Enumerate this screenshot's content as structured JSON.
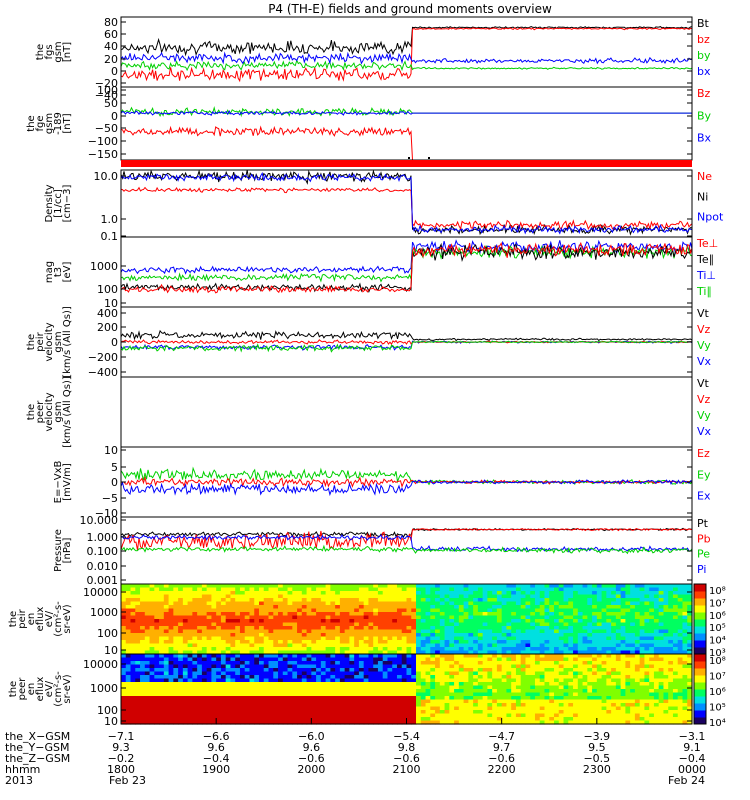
{
  "title": "P4 (TH-E) fields and ground moments overview",
  "colors": {
    "black": "#000000",
    "red": "#ff0000",
    "green": "#00d000",
    "blue": "#0000ff",
    "colormap": [
      "#1a0060",
      "#0000ff",
      "#0090ff",
      "#00e0e0",
      "#00ff60",
      "#80ff00",
      "#ffff00",
      "#ffb000",
      "#ff4000",
      "#d00000"
    ]
  },
  "chart_data": [
    {
      "type": "line",
      "id": "fgs",
      "ylabel": [
        "the",
        "fgs",
        "gsm",
        "[nT]"
      ],
      "yticks": [
        "80",
        "60",
        "40",
        "20",
        "0",
        "−20",
        "−40"
      ],
      "ylim": [
        -40,
        80
      ],
      "legend": [
        {
          "name": "Bt",
          "color": "#000000"
        },
        {
          "name": "bz",
          "color": "#ff0000"
        },
        {
          "name": "by",
          "color": "#00d000"
        },
        {
          "name": "bx",
          "color": "#0000ff"
        }
      ],
      "series": [
        {
          "name": "Bt",
          "color": "#000000",
          "level_before": 28,
          "noise_before": 8,
          "level_after": 62,
          "noise_after": 1
        },
        {
          "name": "bz",
          "color": "#ff0000",
          "level_before": -18,
          "noise_before": 8,
          "level_after": 60,
          "noise_after": 1
        },
        {
          "name": "by",
          "color": "#00d000",
          "level_before": -3,
          "noise_before": 5,
          "level_after": -8,
          "noise_after": 1
        },
        {
          "name": "bx",
          "color": "#0000ff",
          "level_before": 10,
          "noise_before": 6,
          "level_after": 5,
          "noise_after": 3
        }
      ]
    },
    {
      "type": "line",
      "id": "fge",
      "ylabel": [
        "the",
        "fge",
        "gsm",
        "-189",
        "[nT]"
      ],
      "yticks": [
        "100",
        "50",
        "0",
        "−50",
        "−100",
        "−150"
      ],
      "ylim": [
        -180,
        100
      ],
      "legend": [
        {
          "name": "Bz",
          "color": "#ff0000"
        },
        {
          "name": "By",
          "color": "#00d000"
        },
        {
          "name": "Bx",
          "color": "#0000ff"
        }
      ],
      "series": [
        {
          "name": "Bz",
          "color": "#ff0000",
          "level_before": -70,
          "noise_before": 12,
          "level_after": -189,
          "noise_after": 0
        },
        {
          "name": "By",
          "color": "#00d000",
          "level_before": 5,
          "noise_before": 10,
          "level_after": 0,
          "noise_after": 0
        },
        {
          "name": "Bx",
          "color": "#0000ff",
          "level_before": 0,
          "noise_before": 5,
          "level_after": 0,
          "noise_after": 0
        }
      ]
    },
    {
      "type": "line",
      "id": "density",
      "log": true,
      "ylabel": [
        "Density",
        "[1/cc]",
        "[cm−3]"
      ],
      "yticks": [
        "10.0",
        "1.0",
        "0.1"
      ],
      "ylim": [
        0.1,
        50
      ],
      "legend": [
        {
          "name": "Ne",
          "color": "#ff0000"
        },
        {
          "name": "Ni",
          "color": "#000000"
        },
        {
          "name": "Npot",
          "color": "#0000ff"
        }
      ],
      "series": [
        {
          "name": "Ni",
          "color": "#000000",
          "level_before": 28,
          "noise_before": 0.08,
          "level_after": 0.2,
          "noise_after": 0.06
        },
        {
          "name": "Ne",
          "color": "#ff0000",
          "level_before": 8,
          "noise_before": 0.03,
          "level_after": 0.3,
          "noise_after": 0.06
        },
        {
          "name": "Npot",
          "color": "#0000ff",
          "level_before": 25,
          "noise_before": 0.05,
          "level_after": 0.2,
          "noise_after": 0.05
        }
      ]
    },
    {
      "type": "line",
      "id": "temp",
      "log": true,
      "ylabel": [
        "mag",
        "t3",
        "[eV]"
      ],
      "yticks": [
        "1000",
        "100",
        "10"
      ],
      "ylim": [
        10,
        6000
      ],
      "legend": [
        {
          "name": "Te⊥",
          "color": "#ff0000"
        },
        {
          "name": "Te∥",
          "color": "#000000"
        },
        {
          "name": "Ti⊥",
          "color": "#0000ff"
        },
        {
          "name": "Ti∥",
          "color": "#00d000"
        }
      ],
      "series": [
        {
          "name": "Ti⊥",
          "color": "#0000ff",
          "level_before": 300,
          "noise_before": 0.05,
          "level_after": 2500,
          "noise_after": 0.08
        },
        {
          "name": "Ti∥",
          "color": "#00d000",
          "level_before": 150,
          "noise_before": 0.05,
          "level_after": 1500,
          "noise_after": 0.08
        },
        {
          "name": "Te∥",
          "color": "#000000",
          "level_before": 60,
          "noise_before": 0.05,
          "level_after": 1500,
          "noise_after": 0.1
        },
        {
          "name": "Te⊥",
          "color": "#ff0000",
          "level_before": 50,
          "noise_before": 0.05,
          "level_after": 1800,
          "noise_after": 0.1
        }
      ]
    },
    {
      "type": "line",
      "id": "vel_i",
      "ylabel": [
        "the",
        "peir",
        "velocity",
        "gsm",
        "[km/s (All Qs)]"
      ],
      "yticks": [
        "400",
        "200",
        "0",
        "−200",
        "−400"
      ],
      "ylim": [
        -400,
        400
      ],
      "legend": [
        {
          "name": "Vt",
          "color": "#000000"
        },
        {
          "name": "Vz",
          "color": "#ff0000"
        },
        {
          "name": "Vy",
          "color": "#00d000"
        },
        {
          "name": "Vx",
          "color": "#0000ff"
        }
      ],
      "series": [
        {
          "name": "Vt",
          "color": "#000000",
          "level_before": 80,
          "noise_before": 30,
          "level_after": 30,
          "noise_after": 8
        },
        {
          "name": "Vx",
          "color": "#0000ff",
          "level_before": -60,
          "noise_before": 20,
          "level_after": 0,
          "noise_after": 8
        },
        {
          "name": "Vz",
          "color": "#ff0000",
          "level_before": 0,
          "noise_before": 15,
          "level_after": 0,
          "noise_after": 6
        },
        {
          "name": "Vy",
          "color": "#00d000",
          "level_before": -70,
          "noise_before": 25,
          "level_after": 0,
          "noise_after": 6
        }
      ]
    },
    {
      "type": "line",
      "id": "vel_e",
      "ylabel": [
        "the",
        "peer",
        "velocity",
        "gsm",
        "[km/s (All Qs)]"
      ],
      "yticks": [],
      "ylim": [
        -400,
        400
      ],
      "legend": [
        {
          "name": "Vt",
          "color": "#000000"
        },
        {
          "name": "Vz",
          "color": "#ff0000"
        },
        {
          "name": "Vy",
          "color": "#00d000"
        },
        {
          "name": "Vx",
          "color": "#0000ff"
        }
      ],
      "series": []
    },
    {
      "type": "line",
      "id": "efield",
      "ylabel": [
        "E=−VxB",
        "[mV/m]"
      ],
      "yticks": [
        "10",
        "5",
        "0",
        "−5",
        "−10"
      ],
      "ylim": [
        -10,
        10
      ],
      "legend": [
        {
          "name": "Ez",
          "color": "#ff0000"
        },
        {
          "name": "Ey",
          "color": "#00d000"
        },
        {
          "name": "Ex",
          "color": "#0000ff"
        }
      ],
      "series": [
        {
          "name": "Ey",
          "color": "#00d000",
          "level_before": 2,
          "noise_before": 1.2,
          "level_after": 0,
          "noise_after": 0.4
        },
        {
          "name": "Ez",
          "color": "#ff0000",
          "level_before": 0,
          "noise_before": 0.8,
          "level_after": 0,
          "noise_after": 0.3
        },
        {
          "name": "Ex",
          "color": "#0000ff",
          "level_before": -2,
          "noise_before": 1.2,
          "level_after": 0,
          "noise_after": 0.4
        }
      ]
    },
    {
      "type": "line",
      "id": "pressure",
      "log": true,
      "ylabel": [
        "Pressure",
        "[nPa]"
      ],
      "yticks": [
        "10.000",
        "1.000",
        "0.100",
        "0.010",
        "0.001"
      ],
      "ylim": [
        0.001,
        10
      ],
      "legend": [
        {
          "name": "Pt",
          "color": "#000000"
        },
        {
          "name": "Pb",
          "color": "#ff0000"
        },
        {
          "name": "Pe",
          "color": "#00d000"
        },
        {
          "name": "Pi",
          "color": "#0000ff"
        }
      ],
      "series": [
        {
          "name": "Pt",
          "color": "#000000",
          "level_before": 0.9,
          "noise_before": 0.05,
          "level_after": 1.8,
          "noise_after": 0.02
        },
        {
          "name": "Pb",
          "color": "#ff0000",
          "level_before": 0.35,
          "noise_before": 0.2,
          "level_after": 1.8,
          "noise_after": 0.02
        },
        {
          "name": "Pi",
          "color": "#0000ff",
          "level_before": 0.6,
          "noise_before": 0.05,
          "level_after": 0.12,
          "noise_after": 0.05
        },
        {
          "name": "Pe",
          "color": "#00d000",
          "level_before": 0.12,
          "noise_before": 0.05,
          "level_after": 0.1,
          "noise_after": 0.05
        }
      ]
    },
    {
      "type": "heatmap",
      "id": "eflux_i",
      "ylabel": [
        "the",
        "peir",
        "en",
        "eflux",
        "eV/",
        "(cm²-s-",
        "sr-eV)"
      ],
      "yticks": [
        "10000",
        "1000",
        "100",
        "10"
      ],
      "ylim": [
        10,
        20000
      ],
      "colorbar": [
        "10⁸",
        "10⁷",
        "10⁶",
        "10⁵",
        "10⁴",
        "10³"
      ]
    },
    {
      "type": "heatmap",
      "id": "eflux_e",
      "ylabel": [
        "the",
        "peer",
        "en",
        "eflux",
        "eV/",
        "(cm²-s-",
        "sr-eV)"
      ],
      "yticks": [
        "10000",
        "1000",
        "100",
        "10"
      ],
      "ylim": [
        10,
        20000
      ],
      "colorbar": [
        "10⁸",
        "10⁷",
        "10⁶",
        "10⁵",
        "10⁴"
      ]
    }
  ],
  "time_axis": {
    "tick_count": 7,
    "shock_fraction": 0.51,
    "rows": [
      {
        "label": "the_X−GSM",
        "values": [
          "−7.1",
          "−6.6",
          "−6.0",
          "−5.4",
          "−4.7",
          "−3.9",
          "−3.1"
        ]
      },
      {
        "label": "the_Y−GSM",
        "values": [
          "9.3",
          "9.6",
          "9.6",
          "9.8",
          "9.7",
          "9.5",
          "9.1"
        ]
      },
      {
        "label": "the_Z−GSM",
        "values": [
          "−0.2",
          "−0.4",
          "−0.6",
          "−0.6",
          "−0.6",
          "−0.5",
          "−0.4"
        ]
      },
      {
        "label": "hhmm",
        "values": [
          "1800",
          "1900",
          "2000",
          "2100",
          "2200",
          "2300",
          "0000"
        ]
      }
    ],
    "year": "2013",
    "date_start": "Feb 23",
    "date_end": "Feb 24"
  }
}
